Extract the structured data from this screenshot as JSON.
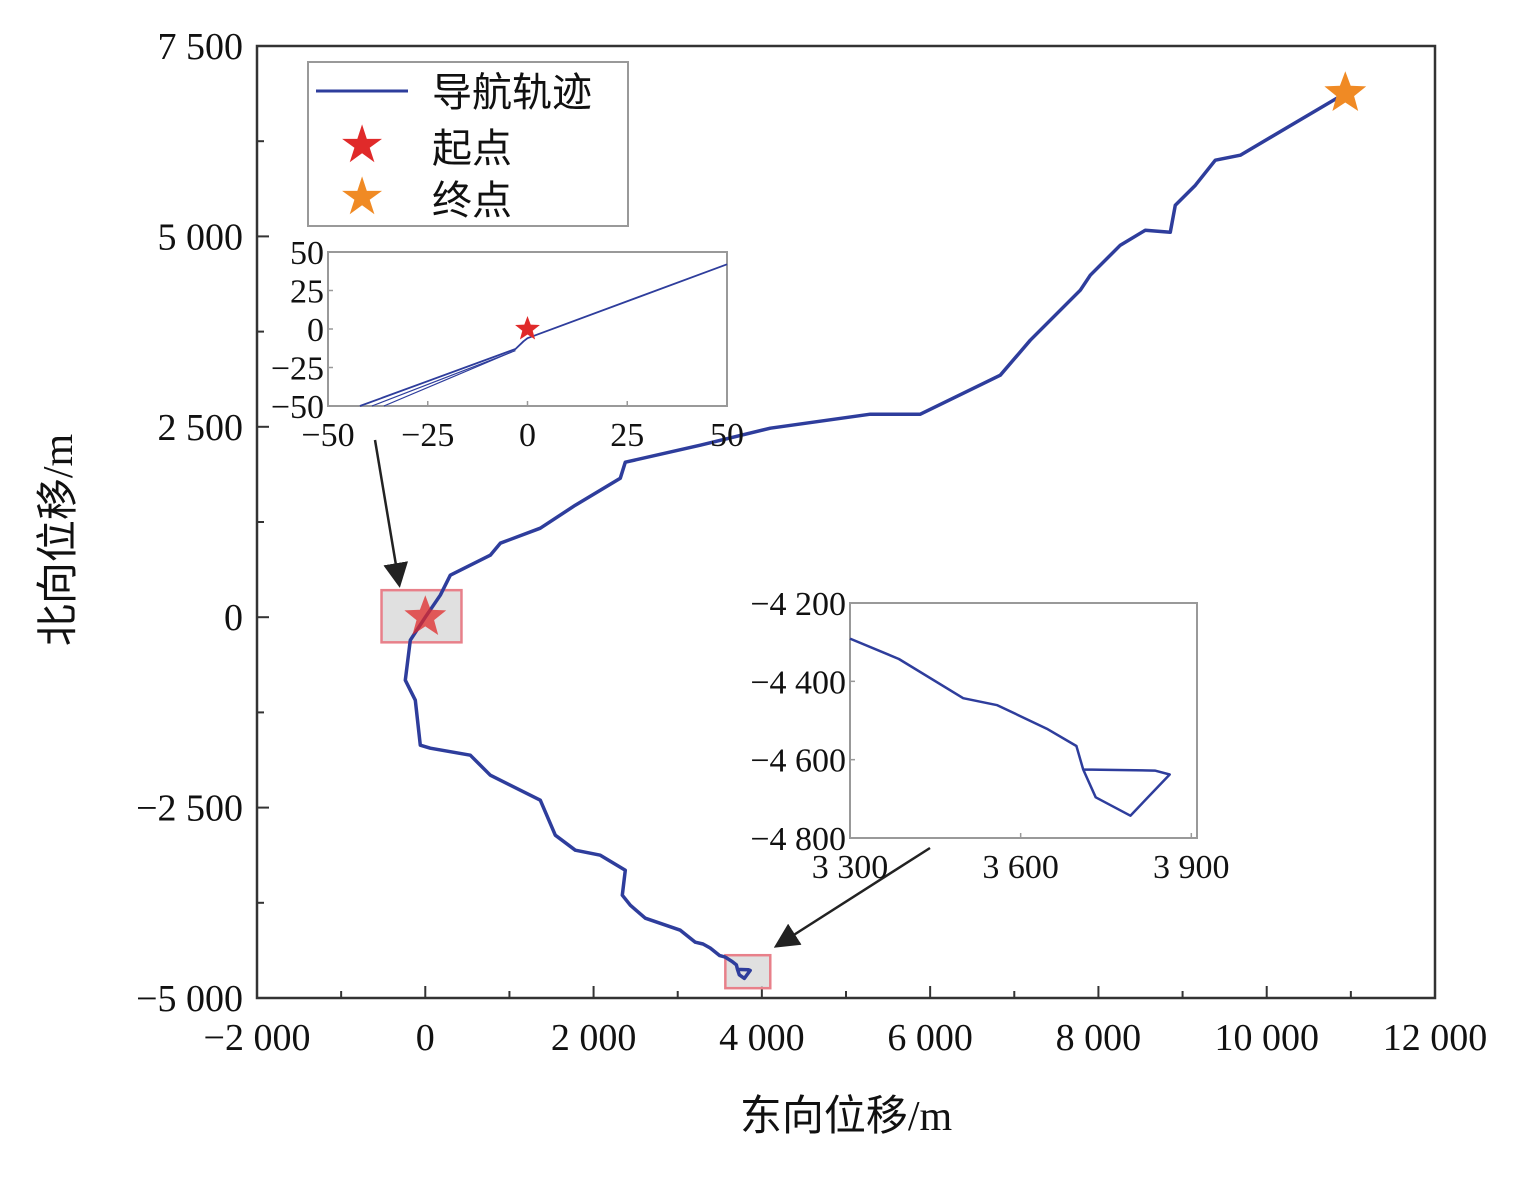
{
  "chart_data": {
    "type": "line",
    "xlabel": "东向位移/m",
    "ylabel": "北向位移/m",
    "xlim": [
      -2000,
      12000
    ],
    "ylim": [
      -5000,
      7500
    ],
    "xticks": [
      -2000,
      0,
      2000,
      4000,
      6000,
      8000,
      10000,
      12000
    ],
    "xtick_labels": [
      "−2 000",
      "0",
      "2 000",
      "4 000",
      "6 000",
      "8 000",
      "10 000",
      "12 000"
    ],
    "yticks": [
      7500,
      5000,
      2500,
      0,
      -2500,
      -5000
    ],
    "ytick_labels": [
      "7 500",
      "5 000",
      "2 500",
      "0",
      "−2 500",
      "−5 000"
    ],
    "grid": false,
    "legend_position": "top-left",
    "legend": [
      {
        "label": "导航轨迹",
        "marker": "line",
        "color": "#2e3d9c"
      },
      {
        "label": "起点",
        "marker": "star",
        "color": "#e02a2a"
      },
      {
        "label": "终点",
        "marker": "star",
        "color": "#f08a24"
      }
    ],
    "colors": {
      "track": "#2e3d9c",
      "start": "#e02a2a",
      "end": "#f08a24",
      "highlight_fill": "#d8d8d8",
      "highlight_edge": "#e8808a"
    },
    "series": [
      {
        "name": "导航轨迹",
        "points": [
          [
            3710,
            -4625
          ],
          [
            3836,
            -4628
          ],
          [
            3862,
            -4638
          ],
          [
            3793,
            -4743
          ],
          [
            3732,
            -4696
          ],
          [
            3710,
            -4625
          ],
          [
            3698,
            -4565
          ],
          [
            3646,
            -4521
          ],
          [
            3559,
            -4461
          ],
          [
            3499,
            -4443
          ],
          [
            3386,
            -4343
          ],
          [
            3300,
            -4291
          ],
          [
            3209,
            -4267
          ],
          [
            3031,
            -4110
          ],
          [
            2615,
            -3952
          ],
          [
            2436,
            -3781
          ],
          [
            2341,
            -3650
          ],
          [
            2377,
            -3322
          ],
          [
            2080,
            -3125
          ],
          [
            1783,
            -3059
          ],
          [
            1545,
            -2862
          ],
          [
            1367,
            -2403
          ],
          [
            773,
            -2075
          ],
          [
            535,
            -1812
          ],
          [
            59,
            -1720
          ],
          [
            -59,
            -1681
          ],
          [
            -119,
            -1090
          ],
          [
            -238,
            -827
          ],
          [
            -178,
            -302
          ],
          [
            0,
            0
          ],
          [
            178,
            289
          ],
          [
            297,
            552
          ],
          [
            535,
            683
          ],
          [
            773,
            814
          ],
          [
            891,
            972
          ],
          [
            1367,
            1169
          ],
          [
            1783,
            1471
          ],
          [
            2318,
            1825
          ],
          [
            2377,
            2035
          ],
          [
            3268,
            2258
          ],
          [
            4100,
            2482
          ],
          [
            5289,
            2665
          ],
          [
            5883,
            2665
          ],
          [
            6834,
            3177
          ],
          [
            7190,
            3637
          ],
          [
            7785,
            4294
          ],
          [
            7903,
            4490
          ],
          [
            8260,
            4884
          ],
          [
            8557,
            5081
          ],
          [
            8854,
            5055
          ],
          [
            8914,
            5410
          ],
          [
            9152,
            5672
          ],
          [
            9389,
            6000
          ],
          [
            9686,
            6066
          ],
          [
            10934,
            6880
          ]
        ]
      }
    ],
    "start_point": [
      0,
      0
    ],
    "end_point": [
      10934,
      6880
    ],
    "highlight_boxes": [
      {
        "x": [
          -520,
          430
        ],
        "y": [
          -330,
          355
        ]
      },
      {
        "x": [
          3566,
          4100
        ],
        "y": [
          -4871,
          -4438
        ]
      }
    ],
    "insets": [
      {
        "xlim": [
          -50,
          50
        ],
        "ylim": [
          -50,
          50
        ],
        "xticks": [
          -50,
          -25,
          0,
          25,
          50
        ],
        "xtick_labels": [
          "−50",
          "−25",
          "0",
          "25",
          "50"
        ],
        "yticks": [
          50,
          25,
          0,
          -25,
          -50
        ],
        "ytick_labels": [
          "50",
          "25",
          "0",
          "−25",
          "−50"
        ],
        "start_point": [
          0,
          0
        ],
        "lines": [
          [
            [
              -42,
              -50
            ],
            [
              -3,
              -13
            ],
            [
              -1,
              -8
            ],
            [
              0,
              -6
            ],
            [
              50,
              42
            ]
          ],
          [
            [
              -39,
              -50
            ],
            [
              -3,
              -14
            ]
          ],
          [
            [
              -36,
              -50
            ],
            [
              -4,
              -15
            ]
          ]
        ]
      },
      {
        "xlim": [
          3300,
          3910
        ],
        "ylim": [
          -4800,
          -4200
        ],
        "xticks": [
          3300,
          3600,
          3900
        ],
        "xtick_labels": [
          "3 300",
          "3 600",
          "3 900"
        ],
        "yticks": [
          -4200,
          -4400,
          -4600,
          -4800
        ],
        "ytick_labels": [
          "−4 200",
          "−4 400",
          "−4 600",
          "−4 800"
        ],
        "lines": [
          [
            [
              3300,
              -4291
            ],
            [
              3386,
              -4343
            ],
            [
              3499,
              -4443
            ],
            [
              3559,
              -4461
            ],
            [
              3646,
              -4521
            ],
            [
              3698,
              -4565
            ],
            [
              3710,
              -4625
            ],
            [
              3732,
              -4696
            ],
            [
              3793,
              -4743
            ],
            [
              3862,
              -4638
            ],
            [
              3836,
              -4628
            ],
            [
              3710,
              -4625
            ]
          ]
        ]
      }
    ]
  }
}
